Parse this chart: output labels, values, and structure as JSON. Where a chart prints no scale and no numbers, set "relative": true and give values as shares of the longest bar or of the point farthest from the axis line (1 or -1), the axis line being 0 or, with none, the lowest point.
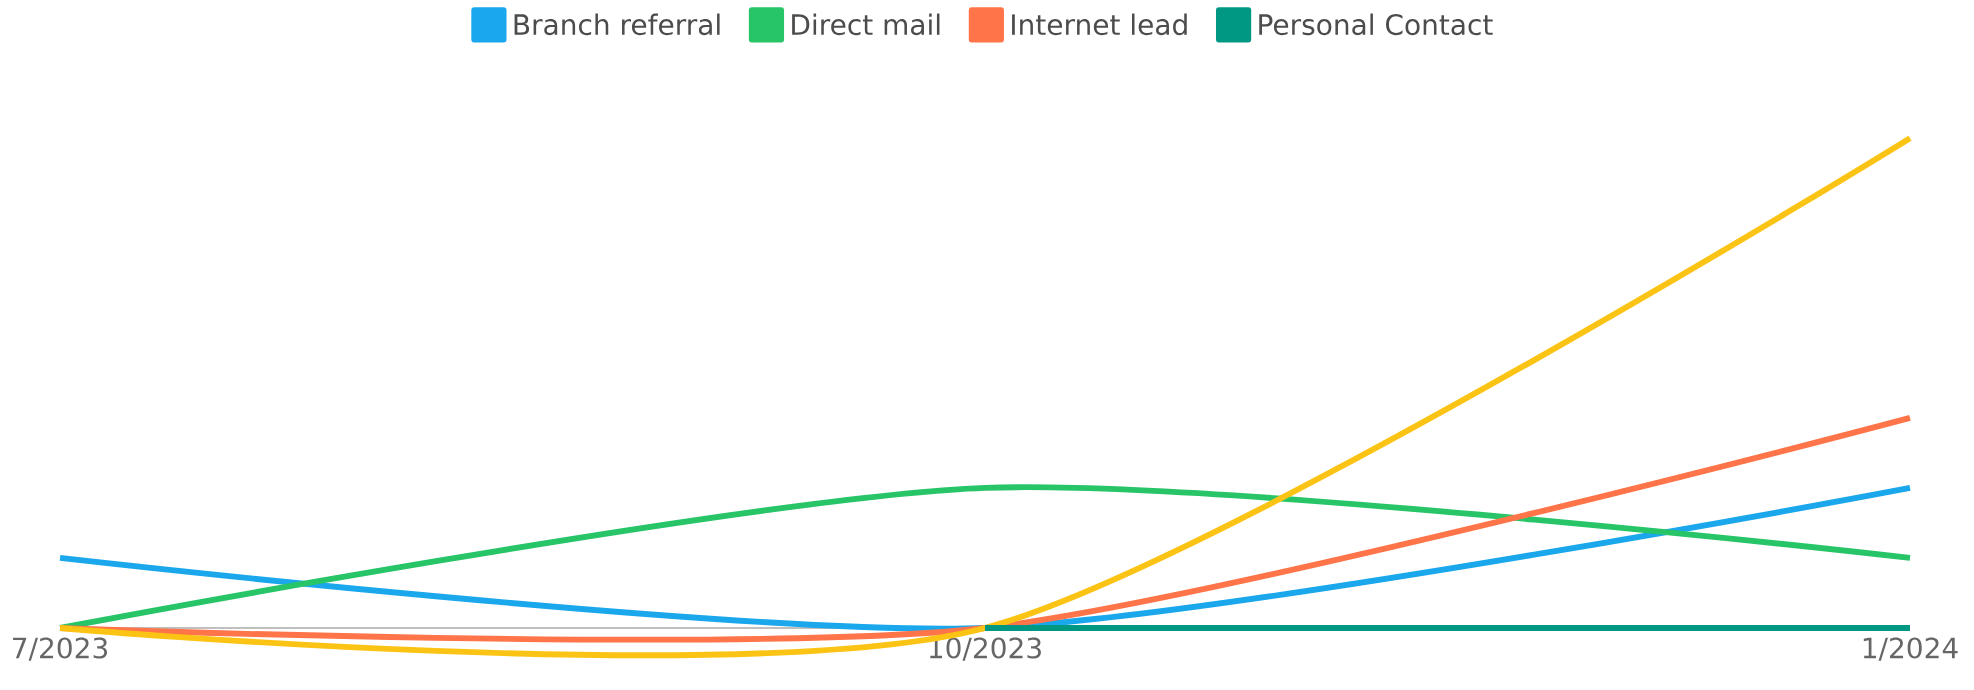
{
  "chart_data": {
    "type": "line",
    "relative": true,
    "categories": [
      "7/2023",
      "10/2023",
      "1/2024"
    ],
    "legend": "top",
    "series": [
      {
        "name": "Branch referral",
        "color": "#1aa7ec",
        "values": [
          0.143,
          0,
          0.286
        ]
      },
      {
        "name": "Direct mail",
        "color": "#27c468",
        "values": [
          0,
          0.286,
          0.143
        ]
      },
      {
        "name": "Internet lead",
        "color": "#ff7449",
        "values": [
          0,
          0,
          0.429
        ]
      },
      {
        "color": "#fbc313",
        "values": [
          0,
          0,
          1
        ]
      },
      {
        "name": "Personal Contact",
        "color": "#009883",
        "values": [
          null,
          0,
          0
        ]
      }
    ]
  }
}
